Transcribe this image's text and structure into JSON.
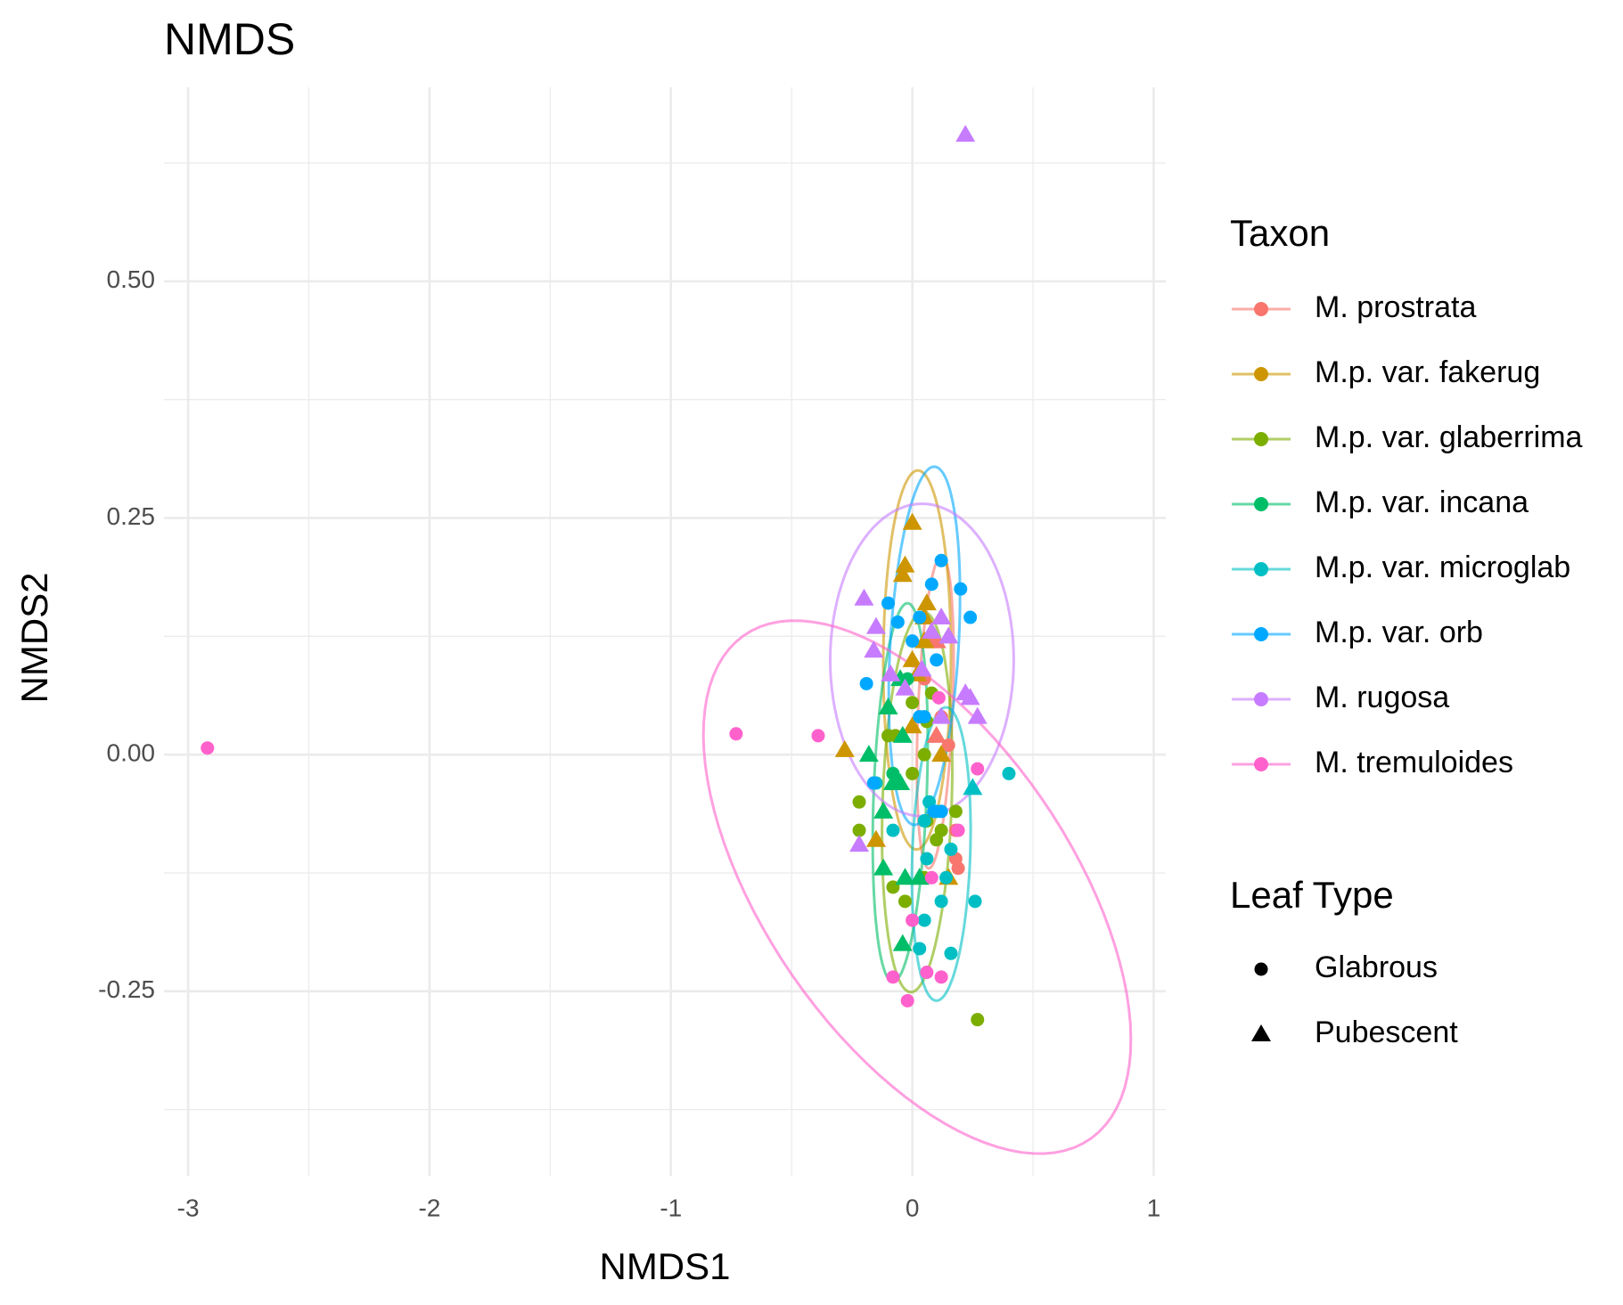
{
  "chart_data": {
    "type": "scatter",
    "title": "NMDS",
    "x_label": "NMDS1",
    "y_label": "NMDS2",
    "xlim": [
      -3.1,
      1.05
    ],
    "ylim": [
      -0.445,
      0.705
    ],
    "xticks": [
      -3,
      -2,
      -1,
      0,
      1
    ],
    "yticks": [
      {
        "value": -0.25,
        "label": "-0.25"
      },
      {
        "value": 0,
        "label": "0.00"
      },
      {
        "value": 0.25,
        "label": "0.25"
      },
      {
        "value": 0.5,
        "label": "0.50"
      }
    ],
    "grid": true,
    "legend_title": "Taxon",
    "shape_legend_title": "Leaf Type",
    "leaf_types": [
      "Glabrous",
      "Pubescent"
    ],
    "series": [
      {
        "name": "M. prostrata",
        "color": "#F8766D",
        "x": [
          0.07,
          0.1,
          0.15,
          0.1,
          0.18,
          0.18,
          0.19,
          0.12,
          0.05
        ],
        "y": [
          0.12,
          0.12,
          0.01,
          0.02,
          -0.08,
          -0.11,
          -0.12,
          0.04,
          0.08
        ],
        "leaf": [
          1,
          1,
          0,
          1,
          0,
          0,
          0,
          0,
          0
        ],
        "ellipse": {
          "center": [
            0.095,
            0.045
          ],
          "axis1": [
            0.03,
            0.165
          ],
          "axis2": [
            0.07,
            -0.008
          ]
        }
      },
      {
        "name": "M.p. var. fakerug",
        "color": "#CD9600",
        "x": [
          0,
          -0.04,
          -0.03,
          0.06,
          0.05,
          0,
          0.02,
          -0.28,
          -0.15,
          0.15,
          0,
          0.12,
          0.05
        ],
        "y": [
          0.245,
          0.19,
          0.2,
          0.16,
          0.145,
          0.1,
          0.085,
          0.005,
          -0.09,
          -0.13,
          0.03,
          0,
          0.12
        ],
        "leaf": [
          1,
          1,
          1,
          1,
          1,
          1,
          1,
          1,
          1,
          1,
          1,
          1,
          1
        ],
        "ellipse": {
          "center": [
            0.02,
            0.1
          ],
          "axis1": [
            0.01,
            0.2
          ],
          "axis2": [
            0.14,
            -0.01
          ]
        }
      },
      {
        "name": "M.p. var. glaberrima",
        "color": "#7CAE00",
        "x": [
          0,
          0.08,
          0.06,
          0.05,
          -0.1,
          -0.07,
          0,
          -0.22,
          -0.22,
          0.18,
          0.12,
          0.05,
          -0.08,
          -0.03,
          0.1,
          0.27,
          0.06
        ],
        "y": [
          0.055,
          0.065,
          0.035,
          0,
          0.02,
          0.02,
          -0.02,
          -0.05,
          -0.08,
          -0.06,
          -0.08,
          -0.13,
          -0.14,
          -0.155,
          -0.09,
          -0.28,
          -0.07
        ],
        "leaf": [
          0,
          0,
          0,
          0,
          0,
          0,
          0,
          0,
          0,
          0,
          0,
          0,
          0,
          0,
          0,
          0,
          0
        ],
        "ellipse": {
          "center": [
            0.02,
            -0.05
          ],
          "axis1": [
            0.04,
            0.2
          ],
          "axis2": [
            0.14,
            -0.02
          ]
        }
      },
      {
        "name": "M.p. var. incana",
        "color": "#00BE67",
        "x": [
          -0.18,
          -0.1,
          -0.05,
          -0.04,
          -0.12,
          -0.08,
          -0.05,
          -0.03,
          -0.12,
          -0.04,
          0.03,
          -0.08,
          -0.02
        ],
        "y": [
          0,
          0.05,
          0.08,
          0.02,
          -0.06,
          -0.03,
          -0.03,
          -0.13,
          -0.12,
          -0.2,
          -0.13,
          -0.02,
          0.08
        ],
        "leaf": [
          1,
          1,
          1,
          1,
          1,
          1,
          1,
          1,
          1,
          1,
          1,
          0,
          0
        ],
        "ellipse": {
          "center": [
            -0.05,
            -0.04
          ],
          "axis1": [
            0.03,
            0.2
          ],
          "axis2": [
            0.11,
            0
          ]
        }
      },
      {
        "name": "M.p. var. microglab",
        "color": "#00BFC4",
        "x": [
          0.4,
          0.07,
          0.1,
          0.16,
          0.06,
          0.14,
          0.12,
          0.05,
          0.03,
          0.16,
          0.26,
          0.05,
          -0.08,
          -0.15,
          0.25
        ],
        "y": [
          -0.02,
          -0.05,
          -0.06,
          -0.1,
          -0.11,
          -0.13,
          -0.155,
          -0.175,
          -0.205,
          -0.21,
          -0.155,
          -0.07,
          -0.08,
          -0.03,
          -0.035
        ],
        "leaf": [
          0,
          0,
          0,
          0,
          0,
          0,
          0,
          0,
          0,
          0,
          0,
          0,
          0,
          0,
          1
        ],
        "ellipse": {
          "center": [
            0.12,
            -0.105
          ],
          "axis1": [
            0.02,
            0.155
          ],
          "axis2": [
            0.12,
            0
          ]
        }
      },
      {
        "name": "M.p. var. orb",
        "color": "#00A9FF",
        "x": [
          0.12,
          0.2,
          0.08,
          0.24,
          -0.1,
          -0.06,
          0.03,
          0,
          0.1,
          -0.19,
          0.03,
          0.05,
          0.12,
          0.09,
          -0.16
        ],
        "y": [
          0.205,
          0.175,
          0.18,
          0.145,
          0.16,
          0.14,
          0.145,
          0.12,
          0.1,
          0.075,
          0.04,
          0.04,
          -0.06,
          -0.06,
          -0.03
        ],
        "leaf": [
          0,
          0,
          0,
          0,
          0,
          0,
          0,
          0,
          0,
          0,
          0,
          0,
          0,
          0,
          0
        ],
        "ellipse": {
          "center": [
            0.05,
            0.115
          ],
          "axis1": [
            0.07,
            0.185
          ],
          "axis2": [
            0.13,
            -0.04
          ]
        }
      },
      {
        "name": "M. rugosa",
        "color": "#C77CFF",
        "x": [
          0.22,
          -0.2,
          -0.15,
          -0.16,
          0.12,
          0.15,
          0.08,
          -0.09,
          0.04,
          -0.03,
          0.22,
          0.24,
          0.27,
          0.12,
          -0.22
        ],
        "y": [
          0.655,
          0.165,
          0.135,
          0.11,
          0.145,
          0.125,
          0.13,
          0.085,
          0.09,
          0.07,
          0.065,
          0.06,
          0.04,
          0.04,
          -0.095
        ],
        "leaf": [
          1,
          1,
          1,
          1,
          1,
          1,
          1,
          1,
          1,
          1,
          1,
          1,
          1,
          1,
          1
        ],
        "ellipse": {
          "center": [
            0.04,
            0.1
          ],
          "axis1": [
            0,
            0.165
          ],
          "axis2": [
            0.38,
            0
          ]
        }
      },
      {
        "name": "M. tremuloides",
        "color": "#FF61CC",
        "x": [
          -2.92,
          -0.73,
          -0.39,
          0.27,
          0.11,
          0.08,
          0,
          -0.08,
          -0.02,
          0.06,
          0.12,
          0.19
        ],
        "y": [
          0.007,
          0.022,
          0.02,
          -0.015,
          0.06,
          -0.13,
          -0.175,
          -0.235,
          -0.26,
          -0.23,
          -0.235,
          -0.08
        ],
        "leaf": [
          0,
          0,
          0,
          0,
          0,
          0,
          0,
          0,
          0,
          0,
          0,
          0
        ],
        "ellipse": {
          "center": [
            0.02,
            -0.14
          ],
          "axis1": [
            0.28,
            -0.27
          ],
          "axis2": [
            -0.84,
            0.08
          ]
        }
      }
    ]
  }
}
